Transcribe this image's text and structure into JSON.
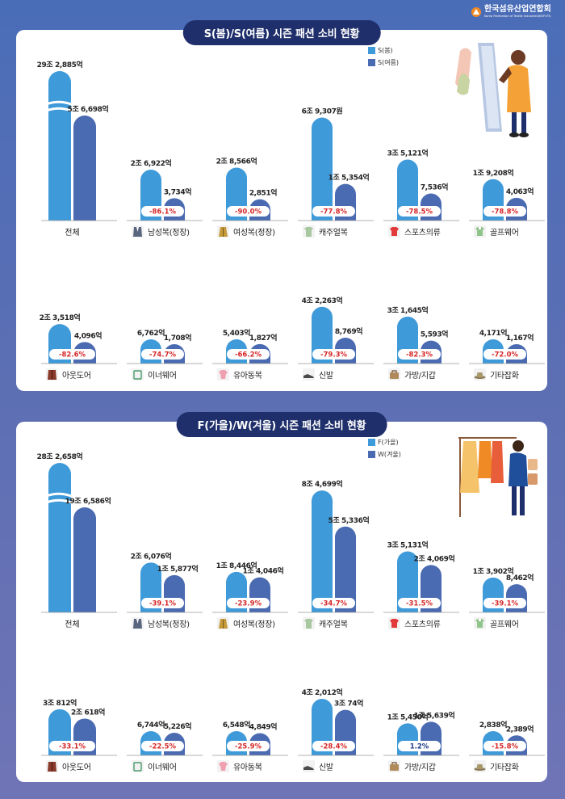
{
  "header": {
    "org_name_ko": "한국섬유산업연합회",
    "org_name_en": "Korea Federation of Textile Industries(KOFOTI)"
  },
  "colors": {
    "light": "#3f9ad9",
    "dark": "#4a6ab1",
    "badge_text": "#d62828",
    "badge_text_pos": "#1f3c8a"
  },
  "chart_data": [
    {
      "type": "bar",
      "title": "S(봄)/S(여름) 시즌 패션 소비 현황",
      "series": [
        {
          "name": "S(봄)"
        },
        {
          "name": "S(여름)"
        }
      ],
      "categories": [
        {
          "name": "전체",
          "icon": "total",
          "a": "29조 2,885억",
          "b": "5조 6,698억",
          "av": 292885,
          "bv": 56698,
          "change": ""
        },
        {
          "name": "남성복(정장)",
          "icon": "men-suit-icon",
          "a": "2조 6,922억",
          "b": "3,734억",
          "av": 26922,
          "bv": 3734,
          "change": "-86.1%"
        },
        {
          "name": "여성복(정장)",
          "icon": "women-coat-icon",
          "a": "2조 8,566억",
          "b": "2,851억",
          "av": 28566,
          "bv": 2851,
          "change": "-90.0%"
        },
        {
          "name": "캐주얼복",
          "icon": "casual-shirt-icon",
          "a": "6조 9,307원",
          "b": "1조 5,354억",
          "av": 69307,
          "bv": 15354,
          "change": "-77.8%"
        },
        {
          "name": "스포츠의류",
          "icon": "sports-top-icon",
          "a": "3조 5,121억",
          "b": "7,536억",
          "av": 35121,
          "bv": 7536,
          "change": "-78.5%"
        },
        {
          "name": "골프웨어",
          "icon": "golf-shirt-icon",
          "a": "1조 9,208억",
          "b": "4,063억",
          "av": 19208,
          "bv": 4063,
          "change": "-78.8%"
        },
        {
          "name": "아웃도어",
          "icon": "outdoor-jacket-icon",
          "a": "2조 3,518억",
          "b": "4,096억",
          "av": 23518,
          "bv": 4096,
          "change": "-82.6%"
        },
        {
          "name": "이너웨어",
          "icon": "innerwear-icon",
          "a": "6,762억",
          "b": "1,708억",
          "av": 6762,
          "bv": 1708,
          "change": "-74.7%"
        },
        {
          "name": "유아동복",
          "icon": "kids-wear-icon",
          "a": "5,403억",
          "b": "1,827억",
          "av": 5403,
          "bv": 1827,
          "change": "-66.2%"
        },
        {
          "name": "신발",
          "icon": "shoe-icon",
          "a": "4조 2,263억",
          "b": "8,769억",
          "av": 42263,
          "bv": 8769,
          "change": "-79.3%"
        },
        {
          "name": "가방/지갑",
          "icon": "bag-icon",
          "a": "3조 1,645억",
          "b": "5,593억",
          "av": 31645,
          "bv": 5593,
          "change": "-82.3%"
        },
        {
          "name": "기타잡화",
          "icon": "hat-icon",
          "a": "4,171억",
          "b": "1,167억",
          "av": 4171,
          "bv": 1167,
          "change": "-72.0%"
        }
      ]
    },
    {
      "type": "bar",
      "title": "F(가을)/W(겨울) 시즌 패션 소비 현황",
      "series": [
        {
          "name": "F(가을)"
        },
        {
          "name": "W(겨울)"
        }
      ],
      "categories": [
        {
          "name": "전체",
          "icon": "total",
          "a": "28조 2,658억",
          "b": "19조 6,586억",
          "av": 282658,
          "bv": 196586,
          "change": ""
        },
        {
          "name": "남성복(정장)",
          "icon": "men-suit-icon",
          "a": "2조 6,076억",
          "b": "1조 5,877억",
          "av": 26076,
          "bv": 15877,
          "change": "-39.1%"
        },
        {
          "name": "여성복(정장)",
          "icon": "women-coat-icon",
          "a": "1조 8,446억",
          "b": "1조 4,046억",
          "av": 18446,
          "bv": 14046,
          "change": "-23.9%"
        },
        {
          "name": "캐주얼복",
          "icon": "casual-shirt-icon",
          "a": "8조 4,699억",
          "b": "5조 5,336억",
          "av": 84699,
          "bv": 55336,
          "change": "-34.7%"
        },
        {
          "name": "스포츠의류",
          "icon": "sports-top-icon",
          "a": "3조 5,131억",
          "b": "2조 4,069억",
          "av": 35131,
          "bv": 24069,
          "change": "-31.5%"
        },
        {
          "name": "골프웨어",
          "icon": "golf-shirt-icon",
          "a": "1조 3,902억",
          "b": "8,462억",
          "av": 13902,
          "bv": 8462,
          "change": "-39.1%"
        },
        {
          "name": "아웃도어",
          "icon": "outdoor-jacket-icon",
          "a": "3조 812억",
          "b": "2조 618억",
          "av": 30812,
          "bv": 20618,
          "change": "-33.1%"
        },
        {
          "name": "이너웨어",
          "icon": "innerwear-icon",
          "a": "6,744억",
          "b": "5,226억",
          "av": 6744,
          "bv": 5226,
          "change": "-22.5%"
        },
        {
          "name": "유아동복",
          "icon": "kids-wear-icon",
          "a": "6,548억",
          "b": "4,849억",
          "av": 6548,
          "bv": 4849,
          "change": "-25.9%"
        },
        {
          "name": "신발",
          "icon": "shoe-icon",
          "a": "4조 2,012억",
          "b": "3조 74억",
          "av": 42012,
          "bv": 30074,
          "change": "-28.4%"
        },
        {
          "name": "가방/지갑",
          "icon": "bag-icon",
          "a": "1조 5,450억",
          "b": "1조 5,639억",
          "av": 15450,
          "bv": 15639,
          "change": "1.2%"
        },
        {
          "name": "기타잡화",
          "icon": "hat-icon",
          "a": "2,838억",
          "b": "2,389억",
          "av": 2838,
          "bv": 2389,
          "change": "-15.8%"
        }
      ]
    }
  ]
}
